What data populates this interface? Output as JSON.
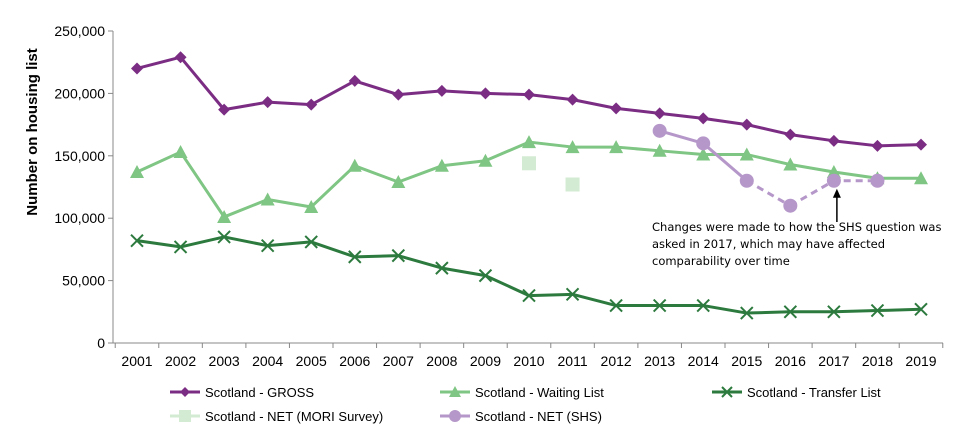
{
  "chart_data": {
    "type": "line",
    "title": "",
    "xlabel": "",
    "ylabel": "Number on housing list",
    "ylim": [
      0,
      250000
    ],
    "yticks": [
      0,
      50000,
      100000,
      150000,
      200000,
      250000
    ],
    "ytick_labels": [
      "0",
      "50,000",
      "100,000",
      "150,000",
      "200,000",
      "250,000"
    ],
    "categories": [
      "2001",
      "2002",
      "2003",
      "2004",
      "2005",
      "2006",
      "2007",
      "2008",
      "2009",
      "2010",
      "2011",
      "2012",
      "2013",
      "2014",
      "2015",
      "2016",
      "2017",
      "2018",
      "2019"
    ],
    "grid": false,
    "legend_position": "bottom",
    "series": [
      {
        "name": "Scotland - GROSS",
        "color": "#7b2d84",
        "marker": "diamond",
        "values": [
          220000,
          229000,
          187000,
          193000,
          191000,
          210000,
          199000,
          202000,
          200000,
          199000,
          195000,
          188000,
          184000,
          180000,
          175000,
          167000,
          162000,
          158000,
          159000
        ]
      },
      {
        "name": "Scotland - Waiting List",
        "color": "#7fc583",
        "marker": "triangle",
        "values": [
          137000,
          153000,
          101000,
          115000,
          109000,
          142000,
          129000,
          142000,
          146000,
          161000,
          157000,
          157000,
          154000,
          151000,
          151000,
          143000,
          137000,
          132000,
          132000
        ]
      },
      {
        "name": "Scotland - Transfer List",
        "color": "#2d7a3e",
        "marker": "x",
        "values": [
          82000,
          77000,
          85000,
          78000,
          81000,
          69000,
          70000,
          60000,
          54000,
          38000,
          39000,
          30000,
          30000,
          30000,
          24000,
          25000,
          25000,
          26000,
          27000
        ]
      },
      {
        "name": "Scotland - NET (MORI Survey)",
        "color": "#d3ebd2",
        "marker": "square",
        "line": false,
        "values": [
          null,
          null,
          null,
          null,
          null,
          null,
          null,
          null,
          null,
          144000,
          127000,
          null,
          null,
          null,
          null,
          null,
          null,
          null,
          null
        ]
      },
      {
        "name": "Scotland - NET (SHS)",
        "color": "#b597c9",
        "marker": "circle",
        "dashed_from_index": 15,
        "values": [
          null,
          null,
          null,
          null,
          null,
          null,
          null,
          null,
          null,
          null,
          null,
          null,
          170000,
          160000,
          130000,
          110000,
          130000,
          130000,
          null
        ]
      }
    ],
    "annotations": [
      {
        "text_lines": [
          "Changes were made to how the SHS question was",
          "asked in 2017, which may  have affected",
          "comparability over time"
        ],
        "points_to": {
          "x": "2017",
          "y": 130000
        }
      }
    ]
  }
}
